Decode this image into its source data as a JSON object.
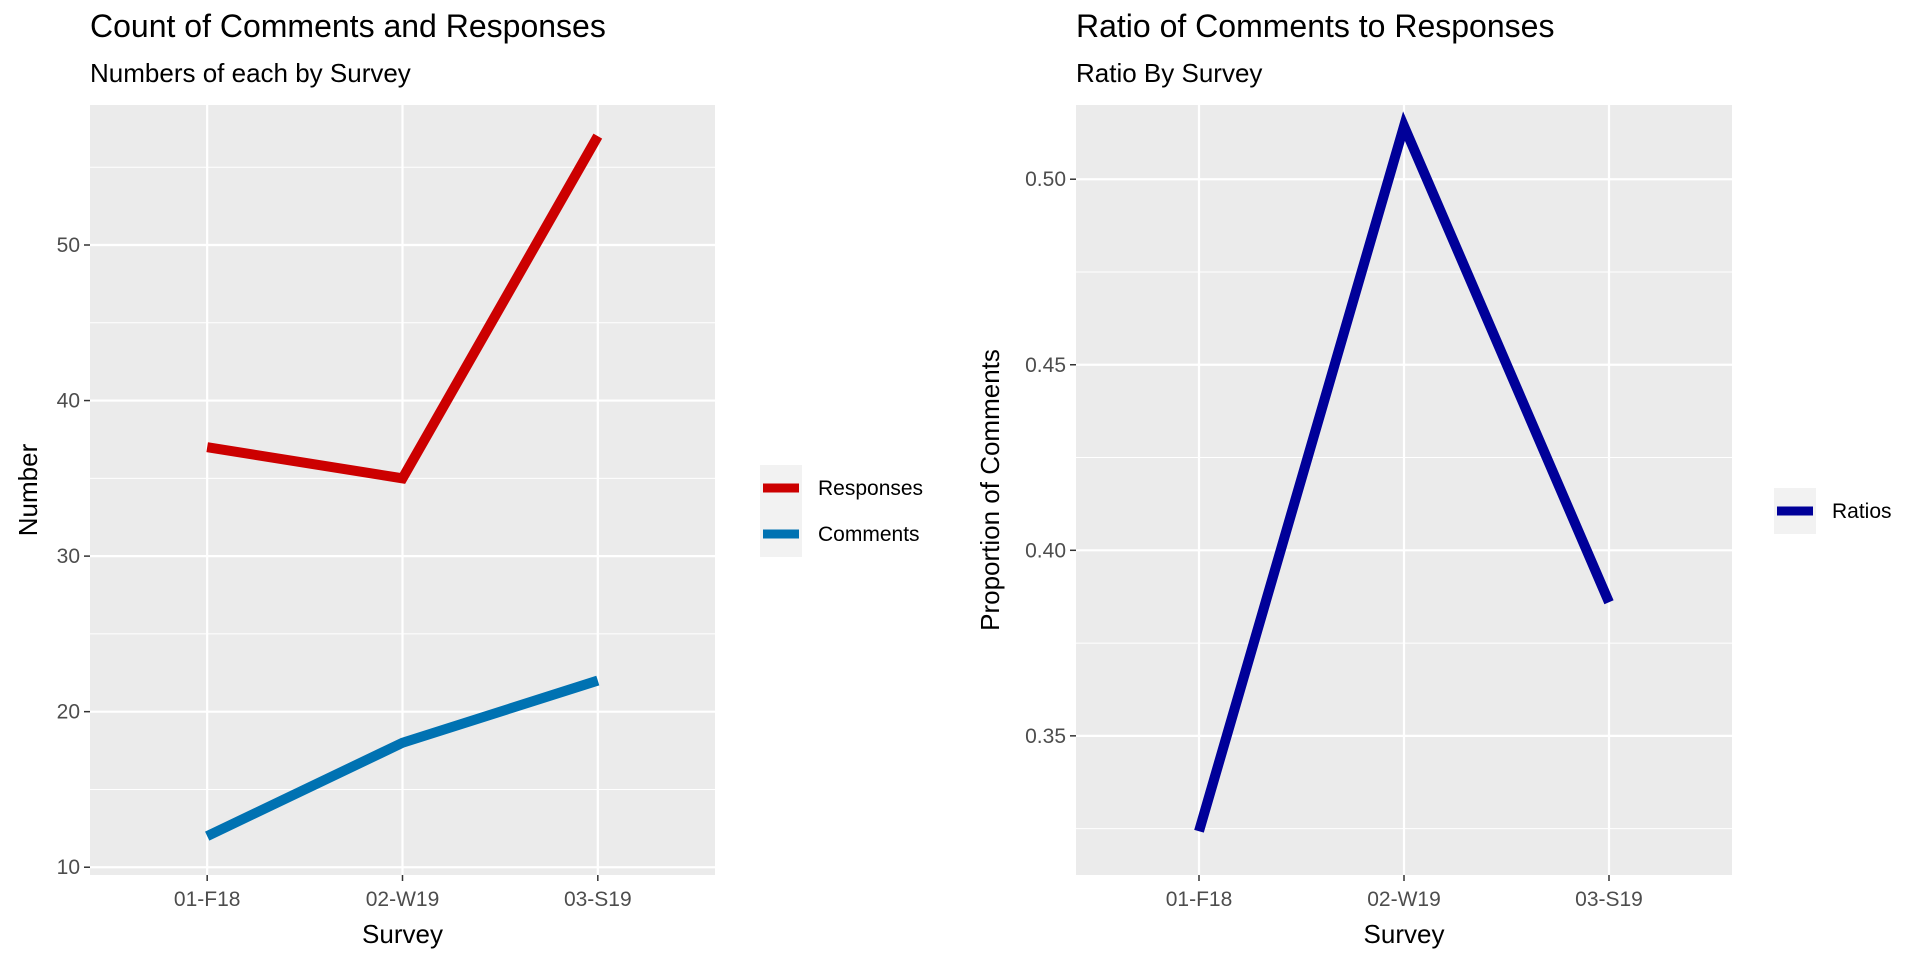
{
  "chart_data": [
    {
      "type": "line",
      "title": "Count of Comments and Responses",
      "subtitle": "Numbers of each by Survey",
      "xlabel": "Survey",
      "ylabel": "Number",
      "categories": [
        "01-F18",
        "02-W19",
        "03-S19"
      ],
      "ylim": [
        9.5,
        59
      ],
      "yticks": [
        10,
        20,
        30,
        40,
        50
      ],
      "ytick_labels": [
        "10",
        "20",
        "30",
        "40",
        "50"
      ],
      "grid": true,
      "legend_position": "right",
      "series": [
        {
          "name": "Responses",
          "values": [
            37,
            35,
            57
          ],
          "color": "#cc0000"
        },
        {
          "name": "Comments",
          "values": [
            12,
            18,
            22
          ],
          "color": "#0072b2"
        }
      ]
    },
    {
      "type": "line",
      "title": "Ratio of Comments to Responses",
      "subtitle": "Ratio By Survey",
      "xlabel": "Survey",
      "ylabel": "Proportion of Comments",
      "categories": [
        "01-F18",
        "02-W19",
        "03-S19"
      ],
      "ylim": [
        0.3125,
        0.52
      ],
      "yticks": [
        0.35,
        0.4,
        0.45,
        0.5
      ],
      "ytick_labels": [
        "0.35",
        "0.40",
        "0.45",
        "0.50"
      ],
      "grid": true,
      "legend_position": "right",
      "series": [
        {
          "name": "Ratios",
          "values": [
            0.3243,
            0.5143,
            0.386
          ],
          "color": "#000099"
        }
      ]
    }
  ]
}
